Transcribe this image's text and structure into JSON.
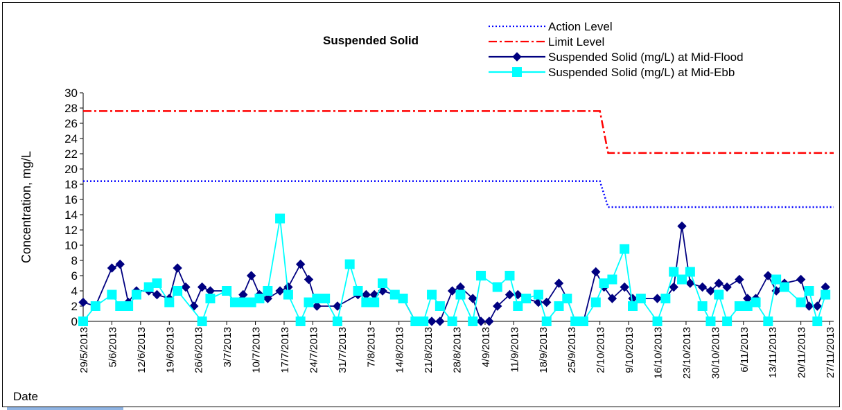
{
  "chart_data": {
    "type": "line",
    "title": "Suspended Solid",
    "y_label": "Concentration, mg/L",
    "x_label": "Date",
    "xlim": [
      "2013-05-29",
      "2013-11-28"
    ],
    "xticks": [
      {
        "value": "2013-05-29",
        "label": "29/5/2013"
      },
      {
        "value": "2013-06-05",
        "label": "5/6/2013"
      },
      {
        "value": "2013-06-12",
        "label": "12/6/2013"
      },
      {
        "value": "2013-06-19",
        "label": "19/6/2013"
      },
      {
        "value": "2013-06-26",
        "label": "26/6/2013"
      },
      {
        "value": "2013-07-03",
        "label": "3/7/2013"
      },
      {
        "value": "2013-07-10",
        "label": "10/7/2013"
      },
      {
        "value": "2013-07-17",
        "label": "17/7/2013"
      },
      {
        "value": "2013-07-24",
        "label": "24/7/2013"
      },
      {
        "value": "2013-07-31",
        "label": "31/7/2013"
      },
      {
        "value": "2013-08-07",
        "label": "7/8/2013"
      },
      {
        "value": "2013-08-14",
        "label": "14/8/2013"
      },
      {
        "value": "2013-08-21",
        "label": "21/8/2013"
      },
      {
        "value": "2013-08-28",
        "label": "28/8/2013"
      },
      {
        "value": "2013-09-04",
        "label": "4/9/2013"
      },
      {
        "value": "2013-09-11",
        "label": "11/9/2013"
      },
      {
        "value": "2013-09-18",
        "label": "18/9/2013"
      },
      {
        "value": "2013-09-25",
        "label": "25/9/2013"
      },
      {
        "value": "2013-10-02",
        "label": "2/10/2013"
      },
      {
        "value": "2013-10-09",
        "label": "9/10/2013"
      },
      {
        "value": "2013-10-16",
        "label": "16/10/2013"
      },
      {
        "value": "2013-10-23",
        "label": "23/10/2013"
      },
      {
        "value": "2013-10-30",
        "label": "30/10/2013"
      },
      {
        "value": "2013-11-06",
        "label": "6/11/2013"
      },
      {
        "value": "2013-11-13",
        "label": "13/11/2013"
      },
      {
        "value": "2013-11-20",
        "label": "20/11/2013"
      },
      {
        "value": "2013-11-27",
        "label": "27/11/2013"
      }
    ],
    "ylim": [
      0,
      30
    ],
    "yticks": [
      0,
      2,
      4,
      6,
      8,
      10,
      12,
      14,
      16,
      18,
      20,
      22,
      24,
      26,
      28,
      30
    ],
    "series": [
      {
        "name": "Action Level",
        "color": "#0000ff",
        "dash": "dotted",
        "marker": null,
        "x": [
          "2013-05-29",
          "2013-10-02",
          "2013-10-04",
          "2013-11-28"
        ],
        "values": [
          18.4,
          18.4,
          15,
          15
        ]
      },
      {
        "name": "Limit Level",
        "color": "#ff0000",
        "dash": "dash-dot",
        "marker": null,
        "x": [
          "2013-05-29",
          "2013-10-02",
          "2013-10-04",
          "2013-11-28"
        ],
        "values": [
          27.6,
          27.6,
          22.1,
          22.1
        ]
      },
      {
        "name": "Suspended Solid (mg/L) at Mid-Flood",
        "color": "#000080",
        "dash": "solid",
        "marker": "diamond",
        "x": [
          "2013-05-29",
          "2013-06-01",
          "2013-06-05",
          "2013-06-07",
          "2013-06-09",
          "2013-06-11",
          "2013-06-14",
          "2013-06-16",
          "2013-06-19",
          "2013-06-21",
          "2013-06-23",
          "2013-06-25",
          "2013-06-27",
          "2013-06-29",
          "2013-07-03",
          "2013-07-05",
          "2013-07-07",
          "2013-07-09",
          "2013-07-11",
          "2013-07-13",
          "2013-07-16",
          "2013-07-18",
          "2013-07-21",
          "2013-07-23",
          "2013-07-25",
          "2013-07-30",
          "2013-08-04",
          "2013-08-06",
          "2013-08-08",
          "2013-08-10",
          "2013-08-13",
          "2013-08-15",
          "2013-08-18",
          "2013-08-20",
          "2013-08-22",
          "2013-08-24",
          "2013-08-27",
          "2013-08-29",
          "2013-09-01",
          "2013-09-03",
          "2013-09-05",
          "2013-09-07",
          "2013-09-10",
          "2013-09-12",
          "2013-09-14",
          "2013-09-17",
          "2013-09-19",
          "2013-09-22",
          "2013-09-24",
          "2013-09-26",
          "2013-09-28",
          "2013-10-01",
          "2013-10-03",
          "2013-10-05",
          "2013-10-08",
          "2013-10-10",
          "2013-10-12",
          "2013-10-16",
          "2013-10-18",
          "2013-10-20",
          "2013-10-22",
          "2013-10-24",
          "2013-10-27",
          "2013-10-29",
          "2013-10-31",
          "2013-11-02",
          "2013-11-05",
          "2013-11-07",
          "2013-11-09",
          "2013-11-12",
          "2013-11-14",
          "2013-11-16",
          "2013-11-20",
          "2013-11-22",
          "2013-11-24",
          "2013-11-26"
        ],
        "values": [
          2.5,
          2,
          7,
          7.5,
          2.5,
          4,
          4,
          3.5,
          3,
          7,
          4.5,
          2,
          4.5,
          4,
          4,
          2.5,
          3.5,
          6,
          3.5,
          3,
          4,
          4.5,
          7.5,
          5.5,
          2,
          2,
          3.5,
          3.5,
          3.5,
          4,
          3.5,
          3,
          0,
          0,
          0,
          0,
          4,
          4.5,
          3,
          0,
          0,
          2,
          3.5,
          3.5,
          3,
          2.5,
          2.5,
          5,
          3,
          0,
          0,
          6.5,
          4.5,
          3,
          4.5,
          3,
          3,
          3,
          3,
          4.5,
          12.5,
          5,
          4.5,
          4,
          5,
          4.5,
          5.5,
          3,
          3,
          6,
          4,
          5,
          5.5,
          2,
          2,
          4.5
        ]
      },
      {
        "name": "Suspended Solid (mg/L) at Mid-Ebb",
        "color": "#00ffff",
        "dash": "solid",
        "marker": "square",
        "x": [
          "2013-05-29",
          "2013-06-01",
          "2013-06-05",
          "2013-06-07",
          "2013-06-09",
          "2013-06-11",
          "2013-06-14",
          "2013-06-16",
          "2013-06-19",
          "2013-06-21",
          "2013-06-27",
          "2013-06-29",
          "2013-07-03",
          "2013-07-05",
          "2013-07-07",
          "2013-07-09",
          "2013-07-11",
          "2013-07-13",
          "2013-07-16",
          "2013-07-18",
          "2013-07-21",
          "2013-07-23",
          "2013-07-25",
          "2013-07-27",
          "2013-07-30",
          "2013-08-02",
          "2013-08-04",
          "2013-08-06",
          "2013-08-08",
          "2013-08-10",
          "2013-08-13",
          "2013-08-15",
          "2013-08-18",
          "2013-08-20",
          "2013-08-22",
          "2013-08-24",
          "2013-08-27",
          "2013-08-29",
          "2013-09-01",
          "2013-09-03",
          "2013-09-07",
          "2013-09-10",
          "2013-09-12",
          "2013-09-14",
          "2013-09-17",
          "2013-09-19",
          "2013-09-22",
          "2013-09-24",
          "2013-09-26",
          "2013-09-28",
          "2013-10-01",
          "2013-10-03",
          "2013-10-05",
          "2013-10-08",
          "2013-10-10",
          "2013-10-12",
          "2013-10-16",
          "2013-10-18",
          "2013-10-20",
          "2013-10-22",
          "2013-10-24",
          "2013-10-27",
          "2013-10-29",
          "2013-10-31",
          "2013-11-02",
          "2013-11-05",
          "2013-11-07",
          "2013-11-09",
          "2013-11-12",
          "2013-11-14",
          "2013-11-16",
          "2013-11-20",
          "2013-11-22",
          "2013-11-24",
          "2013-11-26"
        ],
        "values": [
          0,
          2,
          3.5,
          2,
          2,
          3.5,
          4.5,
          5,
          2.5,
          4,
          0,
          3,
          4,
          2.5,
          2.5,
          2.5,
          3,
          4,
          13.5,
          3.5,
          0,
          2.5,
          3,
          3,
          0,
          7.5,
          4,
          2.5,
          2.5,
          5,
          3.5,
          3,
          0,
          0,
          3.5,
          2,
          0,
          3.5,
          0,
          6,
          4.5,
          6,
          2,
          3,
          3.5,
          0,
          2,
          3,
          0,
          0,
          2.5,
          5,
          5.5,
          9.5,
          2,
          3,
          0,
          3,
          6.5,
          5.5,
          6.5,
          2,
          0,
          3.5,
          0,
          2,
          2,
          2.5,
          0,
          5.5,
          4.5,
          2.5,
          4,
          0,
          3.5
        ]
      }
    ]
  }
}
